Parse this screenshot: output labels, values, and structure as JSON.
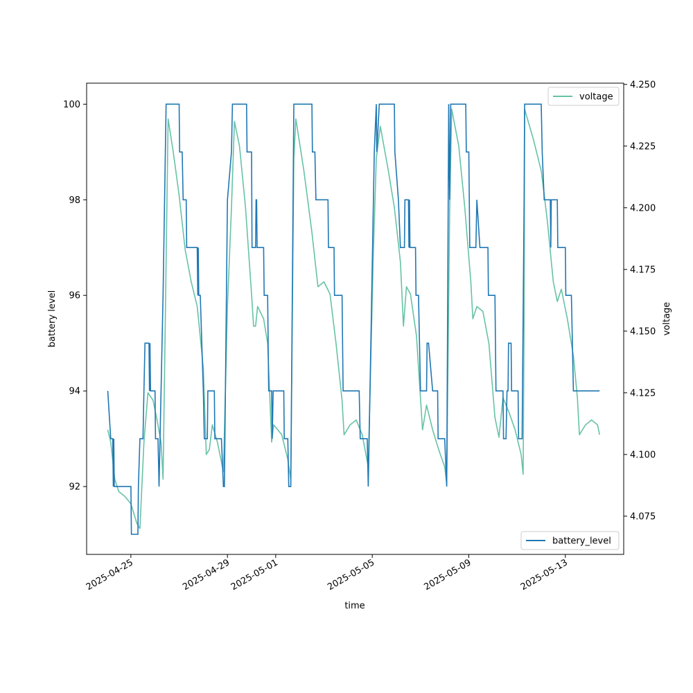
{
  "chart_data": {
    "type": "line",
    "xlabel": "time",
    "ylabel_left": "battery level",
    "ylabel_right": "voltage",
    "x_tick_labels": [
      "2025-04-25",
      "2025-04-29",
      "2025-05-01",
      "2025-05-05",
      "2025-05-09",
      "2025-05-13"
    ],
    "x_range": [
      "2025-04-23 04:00",
      "2025-05-15 10:00"
    ],
    "ylim_left": [
      90.58,
      100.44
    ],
    "ylim_right": [
      4.0595,
      4.2505
    ],
    "left_ticks": [
      92,
      94,
      96,
      98,
      100
    ],
    "right_ticks": [
      4.075,
      4.1,
      4.125,
      4.15,
      4.175,
      4.2,
      4.225,
      4.25
    ],
    "legend_right_axis": {
      "placement": "top-right",
      "label": "voltage"
    },
    "legend_left_axis": {
      "placement": "bottom-right",
      "label": "battery_level"
    },
    "colors": {
      "battery_level": "#1f77b4",
      "voltage": "#66c2a5"
    },
    "series": [
      {
        "name": "battery_level",
        "axis": "left",
        "points": [
          [
            "2025-04-24 01:00",
            94
          ],
          [
            "2025-04-24 04:00",
            93
          ],
          [
            "2025-04-24 06:00",
            93
          ],
          [
            "2025-04-24 06:30",
            92
          ],
          [
            "2025-04-24 07:00",
            93
          ],
          [
            "2025-04-24 07:30",
            92
          ],
          [
            "2025-04-25 00:00",
            92
          ],
          [
            "2025-04-25 00:30",
            91
          ],
          [
            "2025-04-25 07:00",
            91
          ],
          [
            "2025-04-25 07:30",
            92
          ],
          [
            "2025-04-25 09:00",
            93
          ],
          [
            "2025-04-25 12:00",
            93
          ],
          [
            "2025-04-25 13:00",
            94
          ],
          [
            "2025-04-25 14:00",
            95
          ],
          [
            "2025-04-25 18:00",
            95
          ],
          [
            "2025-04-25 18:30",
            94
          ],
          [
            "2025-04-25 19:00",
            95
          ],
          [
            "2025-04-25 19:30",
            94
          ],
          [
            "2025-04-26 00:00",
            94
          ],
          [
            "2025-04-26 00:30",
            93
          ],
          [
            "2025-04-26 03:00",
            93
          ],
          [
            "2025-04-26 04:00",
            92
          ],
          [
            "2025-04-26 08:00",
            96
          ],
          [
            "2025-04-26 11:00",
            100
          ],
          [
            "2025-04-27 00:00",
            100
          ],
          [
            "2025-04-27 00:30",
            99
          ],
          [
            "2025-04-27 03:00",
            99
          ],
          [
            "2025-04-27 04:00",
            98
          ],
          [
            "2025-04-27 07:00",
            98
          ],
          [
            "2025-04-27 07:30",
            97
          ],
          [
            "2025-04-27 18:00",
            97
          ],
          [
            "2025-04-27 18:30",
            96
          ],
          [
            "2025-04-27 19:00",
            97
          ],
          [
            "2025-04-27 19:30",
            96
          ],
          [
            "2025-04-27 21:00",
            96
          ],
          [
            "2025-04-28 00:00",
            94
          ],
          [
            "2025-04-28 01:00",
            93
          ],
          [
            "2025-04-28 04:00",
            93
          ],
          [
            "2025-04-28 04:30",
            94
          ],
          [
            "2025-04-28 11:00",
            94
          ],
          [
            "2025-04-28 11:30",
            93
          ],
          [
            "2025-04-28 18:00",
            93
          ],
          [
            "2025-04-28 20:00",
            92
          ],
          [
            "2025-04-28 21:00",
            92
          ],
          [
            "2025-04-29 00:00",
            98
          ],
          [
            "2025-04-29 04:00",
            99
          ],
          [
            "2025-04-29 05:00",
            100
          ],
          [
            "2025-04-29 19:00",
            100
          ],
          [
            "2025-04-29 19:30",
            99
          ],
          [
            "2025-04-30 00:00",
            99
          ],
          [
            "2025-04-30 00:30",
            97
          ],
          [
            "2025-04-30 04:00",
            97
          ],
          [
            "2025-04-30 04:30",
            98
          ],
          [
            "2025-04-30 05:00",
            98
          ],
          [
            "2025-04-30 05:30",
            97
          ],
          [
            "2025-04-30 12:00",
            97
          ],
          [
            "2025-04-30 12:30",
            96
          ],
          [
            "2025-04-30 16:00",
            96
          ],
          [
            "2025-04-30 17:00",
            94
          ],
          [
            "2025-04-30 20:00",
            94
          ],
          [
            "2025-04-30 20:30",
            93
          ],
          [
            "2025-04-30 21:30",
            94
          ],
          [
            "2025-05-01 08:00",
            94
          ],
          [
            "2025-05-01 08:30",
            93
          ],
          [
            "2025-05-01 12:00",
            93
          ],
          [
            "2025-05-01 13:00",
            92
          ],
          [
            "2025-05-01 15:00",
            92
          ],
          [
            "2025-05-01 18:00",
            100
          ],
          [
            "2025-05-02 12:00",
            100
          ],
          [
            "2025-05-02 12:30",
            99
          ],
          [
            "2025-05-02 15:00",
            99
          ],
          [
            "2025-05-02 16:00",
            98
          ],
          [
            "2025-05-03 04:00",
            98
          ],
          [
            "2025-05-03 04:30",
            97
          ],
          [
            "2025-05-03 10:00",
            97
          ],
          [
            "2025-05-03 10:30",
            96
          ],
          [
            "2025-05-03 18:00",
            96
          ],
          [
            "2025-05-03 19:00",
            94
          ],
          [
            "2025-05-04 11:00",
            94
          ],
          [
            "2025-05-04 12:00",
            93
          ],
          [
            "2025-05-04 19:00",
            93
          ],
          [
            "2025-05-04 20:00",
            92
          ],
          [
            "2025-05-05 02:00",
            99
          ],
          [
            "2025-05-05 04:00",
            100
          ],
          [
            "2025-05-05 04:30",
            99
          ],
          [
            "2025-05-05 07:00",
            100
          ],
          [
            "2025-05-05 22:00",
            100
          ],
          [
            "2025-05-05 22:30",
            99
          ],
          [
            "2025-05-06 02:00",
            98
          ],
          [
            "2025-05-06 04:00",
            97
          ],
          [
            "2025-05-06 08:00",
            97
          ],
          [
            "2025-05-06 08:30",
            98
          ],
          [
            "2025-05-06 12:00",
            98
          ],
          [
            "2025-05-06 12:30",
            97
          ],
          [
            "2025-05-06 13:00",
            98
          ],
          [
            "2025-05-06 13:30",
            97
          ],
          [
            "2025-05-06 19:00",
            97
          ],
          [
            "2025-05-06 19:30",
            96
          ],
          [
            "2025-05-06 22:00",
            96
          ],
          [
            "2025-05-07 00:00",
            94
          ],
          [
            "2025-05-07 06:00",
            94
          ],
          [
            "2025-05-07 06:30",
            95
          ],
          [
            "2025-05-07 08:00",
            95
          ],
          [
            "2025-05-07 12:00",
            94
          ],
          [
            "2025-05-07 17:00",
            94
          ],
          [
            "2025-05-07 17:30",
            93
          ],
          [
            "2025-05-08 00:00",
            93
          ],
          [
            "2025-05-08 02:00",
            92
          ],
          [
            "2025-05-08 04:00",
            100
          ],
          [
            "2025-05-08 05:00",
            98
          ],
          [
            "2025-05-08 06:00",
            100
          ],
          [
            "2025-05-08 21:00",
            100
          ],
          [
            "2025-05-08 21:30",
            99
          ],
          [
            "2025-05-09 00:00",
            99
          ],
          [
            "2025-05-09 01:00",
            97
          ],
          [
            "2025-05-09 07:00",
            97
          ],
          [
            "2025-05-09 08:00",
            98
          ],
          [
            "2025-05-09 11:00",
            97
          ],
          [
            "2025-05-09 19:00",
            97
          ],
          [
            "2025-05-09 19:30",
            96
          ],
          [
            "2025-05-10 02:00",
            96
          ],
          [
            "2025-05-10 03:00",
            94
          ],
          [
            "2025-05-10 10:00",
            94
          ],
          [
            "2025-05-10 10:30",
            93
          ],
          [
            "2025-05-10 13:00",
            93
          ],
          [
            "2025-05-10 14:00",
            94
          ],
          [
            "2025-05-10 15:00",
            94
          ],
          [
            "2025-05-10 15:30",
            95
          ],
          [
            "2025-05-10 18:00",
            95
          ],
          [
            "2025-05-10 18:30",
            94
          ],
          [
            "2025-05-11 01:00",
            94
          ],
          [
            "2025-05-11 01:30",
            93
          ],
          [
            "2025-05-11 05:00",
            93
          ],
          [
            "2025-05-11 07:00",
            98
          ],
          [
            "2025-05-11 07:30",
            100
          ],
          [
            "2025-05-12 00:00",
            100
          ],
          [
            "2025-05-12 01:00",
            99
          ],
          [
            "2025-05-12 03:00",
            98
          ],
          [
            "2025-05-12 09:00",
            98
          ],
          [
            "2025-05-12 09:30",
            97
          ],
          [
            "2025-05-12 10:00",
            98
          ],
          [
            "2025-05-12 16:00",
            98
          ],
          [
            "2025-05-12 16:30",
            97
          ],
          [
            "2025-05-13 00:00",
            97
          ],
          [
            "2025-05-13 00:30",
            96
          ],
          [
            "2025-05-13 06:00",
            96
          ],
          [
            "2025-05-13 08:00",
            94
          ],
          [
            "2025-05-14 10:00",
            94
          ]
        ]
      },
      {
        "name": "voltage",
        "axis": "right",
        "points": [
          [
            "2025-04-24 01:00",
            4.11
          ],
          [
            "2025-04-24 04:00",
            4.105
          ],
          [
            "2025-04-24 08:00",
            4.09
          ],
          [
            "2025-04-24 12:00",
            4.085
          ],
          [
            "2025-04-24 18:00",
            4.083
          ],
          [
            "2025-04-25 00:00",
            4.08
          ],
          [
            "2025-04-25 06:00",
            4.072
          ],
          [
            "2025-04-25 09:00",
            4.07
          ],
          [
            "2025-04-25 13:00",
            4.105
          ],
          [
            "2025-04-25 17:00",
            4.125
          ],
          [
            "2025-04-25 22:00",
            4.122
          ],
          [
            "2025-04-26 02:00",
            4.114
          ],
          [
            "2025-04-26 06:00",
            4.105
          ],
          [
            "2025-04-26 08:00",
            4.09
          ],
          [
            "2025-04-26 13:00",
            4.236
          ],
          [
            "2025-04-26 18:00",
            4.223
          ],
          [
            "2025-04-27 00:00",
            4.205
          ],
          [
            "2025-04-27 06:00",
            4.183
          ],
          [
            "2025-04-27 12:00",
            4.17
          ],
          [
            "2025-04-27 18:00",
            4.16
          ],
          [
            "2025-04-28 00:00",
            4.135
          ],
          [
            "2025-04-28 03:00",
            4.1
          ],
          [
            "2025-04-28 06:00",
            4.102
          ],
          [
            "2025-04-28 09:00",
            4.112
          ],
          [
            "2025-04-28 14:00",
            4.105
          ],
          [
            "2025-04-28 20:00",
            4.093
          ],
          [
            "2025-04-29 00:00",
            4.16
          ],
          [
            "2025-04-29 04:00",
            4.2
          ],
          [
            "2025-04-29 07:00",
            4.235
          ],
          [
            "2025-04-29 12:00",
            4.225
          ],
          [
            "2025-04-29 18:00",
            4.2
          ],
          [
            "2025-04-30 00:00",
            4.165
          ],
          [
            "2025-04-30 02:00",
            4.152
          ],
          [
            "2025-04-30 04:00",
            4.152
          ],
          [
            "2025-04-30 06:00",
            4.16
          ],
          [
            "2025-04-30 12:00",
            4.155
          ],
          [
            "2025-04-30 16:00",
            4.145
          ],
          [
            "2025-04-30 20:00",
            4.105
          ],
          [
            "2025-04-30 22:00",
            4.112
          ],
          [
            "2025-05-01 06:00",
            4.108
          ],
          [
            "2025-05-01 12:00",
            4.098
          ],
          [
            "2025-05-01 15:00",
            4.09
          ],
          [
            "2025-05-01 18:00",
            4.22
          ],
          [
            "2025-05-01 20:00",
            4.236
          ],
          [
            "2025-05-02 04:00",
            4.215
          ],
          [
            "2025-05-02 12:00",
            4.19
          ],
          [
            "2025-05-02 18:00",
            4.168
          ],
          [
            "2025-05-03 00:00",
            4.17
          ],
          [
            "2025-05-03 06:00",
            4.165
          ],
          [
            "2025-05-03 12:00",
            4.145
          ],
          [
            "2025-05-03 18:00",
            4.122
          ],
          [
            "2025-05-03 20:00",
            4.108
          ],
          [
            "2025-05-04 02:00",
            4.112
          ],
          [
            "2025-05-04 08:00",
            4.114
          ],
          [
            "2025-05-04 14:00",
            4.108
          ],
          [
            "2025-05-04 20:00",
            4.095
          ],
          [
            "2025-05-05 01:00",
            4.18
          ],
          [
            "2025-05-05 04:00",
            4.22
          ],
          [
            "2025-05-05 08:00",
            4.233
          ],
          [
            "2025-05-05 16:00",
            4.215
          ],
          [
            "2025-05-05 22:00",
            4.2
          ],
          [
            "2025-05-06 04:00",
            4.178
          ],
          [
            "2025-05-06 07:00",
            4.152
          ],
          [
            "2025-05-06 10:00",
            4.168
          ],
          [
            "2025-05-06 14:00",
            4.165
          ],
          [
            "2025-05-06 20:00",
            4.148
          ],
          [
            "2025-05-07 02:00",
            4.11
          ],
          [
            "2025-05-07 06:00",
            4.12
          ],
          [
            "2025-05-07 12:00",
            4.11
          ],
          [
            "2025-05-07 18:00",
            4.102
          ],
          [
            "2025-05-08 00:00",
            4.095
          ],
          [
            "2025-05-08 02:00",
            4.088
          ],
          [
            "2025-05-08 05:00",
            4.2
          ],
          [
            "2025-05-08 07:00",
            4.24
          ],
          [
            "2025-05-08 14:00",
            4.225
          ],
          [
            "2025-05-08 20:00",
            4.2
          ],
          [
            "2025-05-09 02:00",
            4.17
          ],
          [
            "2025-05-09 04:00",
            4.155
          ],
          [
            "2025-05-09 08:00",
            4.16
          ],
          [
            "2025-05-09 14:00",
            4.158
          ],
          [
            "2025-05-09 20:00",
            4.145
          ],
          [
            "2025-05-10 02:00",
            4.115
          ],
          [
            "2025-05-10 06:00",
            4.107
          ],
          [
            "2025-05-10 10:00",
            4.123
          ],
          [
            "2025-05-10 16:00",
            4.117
          ],
          [
            "2025-05-10 22:00",
            4.11
          ],
          [
            "2025-05-11 04:00",
            4.1
          ],
          [
            "2025-05-11 06:00",
            4.092
          ],
          [
            "2025-05-11 07:00",
            4.155
          ],
          [
            "2025-05-11 07:30",
            4.24
          ],
          [
            "2025-05-11 16:00",
            4.228
          ],
          [
            "2025-05-12 00:00",
            4.215
          ],
          [
            "2025-05-12 06:00",
            4.195
          ],
          [
            "2025-05-12 12:00",
            4.17
          ],
          [
            "2025-05-12 16:00",
            4.162
          ],
          [
            "2025-05-12 20:00",
            4.167
          ],
          [
            "2025-05-13 02:00",
            4.155
          ],
          [
            "2025-05-13 08:00",
            4.14
          ],
          [
            "2025-05-13 12:00",
            4.123
          ],
          [
            "2025-05-13 14:00",
            4.108
          ],
          [
            "2025-05-13 20:00",
            4.112
          ],
          [
            "2025-05-14 02:00",
            4.114
          ],
          [
            "2025-05-14 08:00",
            4.112
          ],
          [
            "2025-05-14 10:00",
            4.108
          ]
        ]
      }
    ]
  }
}
